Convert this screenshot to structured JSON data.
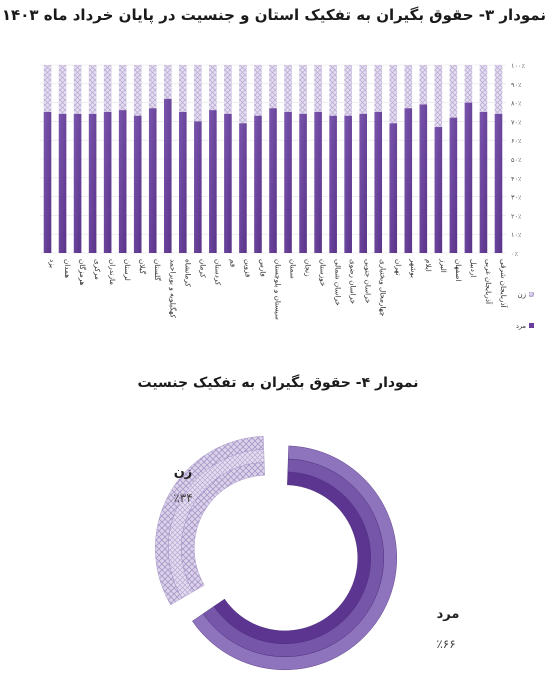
{
  "colors": {
    "men": "#6a3c9c",
    "women_fill": "#e2dbef",
    "women_hatch": "#b9abd4",
    "men_donut": "#6e4a9e",
    "women_donut": "#d7cfe8"
  },
  "chart_data": [
    {
      "type": "bar",
      "stacked": true,
      "title": "نمودار ۳- حقوق بگیران به تفکیک استان و جنسیت  در پایان خرداد ماه ۱۴۰۳",
      "categories": [
        "یزد",
        "همدان",
        "هرمزگان",
        "مرکزی",
        "مازندران",
        "لرستان",
        "گیلان",
        "گلستان",
        "کهگیلویه و بویراحمد",
        "کرمانشاه",
        "کرمان",
        "کردستان",
        "قم",
        "قزوین",
        "فارس",
        "سیستان و بلوچستان",
        "سمنان",
        "زنجان",
        "خوزستان",
        "خراسان شمالی",
        "خراسان رضوی",
        "خراسان جنوبی",
        "چهارمحال وبختیاری",
        "تهران",
        "بوشهر",
        "ایلام",
        "البرز",
        "اصفهان",
        "اردبیل",
        "آذربایجان غربی",
        "آذربایجان شرقی"
      ],
      "series": [
        {
          "name": "مرد",
          "values": [
            75,
            74,
            74,
            74,
            75,
            76,
            73,
            77,
            82,
            75,
            70,
            76,
            74,
            69,
            73,
            77,
            75,
            74,
            75,
            73,
            73,
            74,
            75,
            69,
            77,
            79,
            67,
            72,
            80,
            75,
            74
          ]
        },
        {
          "name": "زن",
          "values": [
            25,
            26,
            26,
            26,
            25,
            24,
            27,
            23,
            18,
            25,
            30,
            24,
            26,
            31,
            27,
            23,
            25,
            26,
            25,
            27,
            27,
            26,
            25,
            31,
            23,
            21,
            33,
            28,
            20,
            25,
            26
          ]
        }
      ],
      "ylim": [
        0,
        100
      ],
      "yticks": [
        "۰٪",
        "۱۰٪",
        "۲۰٪",
        "۳۰٪",
        "۴۰٪",
        "۵۰٪",
        "۶۰٪",
        "۷۰٪",
        "۸۰٪",
        "۹۰٪",
        "۱۰۰٪"
      ],
      "legend": {
        "position": "right",
        "items": [
          "زن",
          "مرد"
        ]
      }
    },
    {
      "type": "pie",
      "style": "donut",
      "title": "نمودار ۴- حقوق بگیران به تفکیک جنسیت",
      "slices": [
        {
          "label": "مرد",
          "value": 66,
          "value_label": "٪۶۶"
        },
        {
          "label": "زن",
          "value": 34,
          "value_label": "٪۳۴"
        }
      ]
    }
  ]
}
